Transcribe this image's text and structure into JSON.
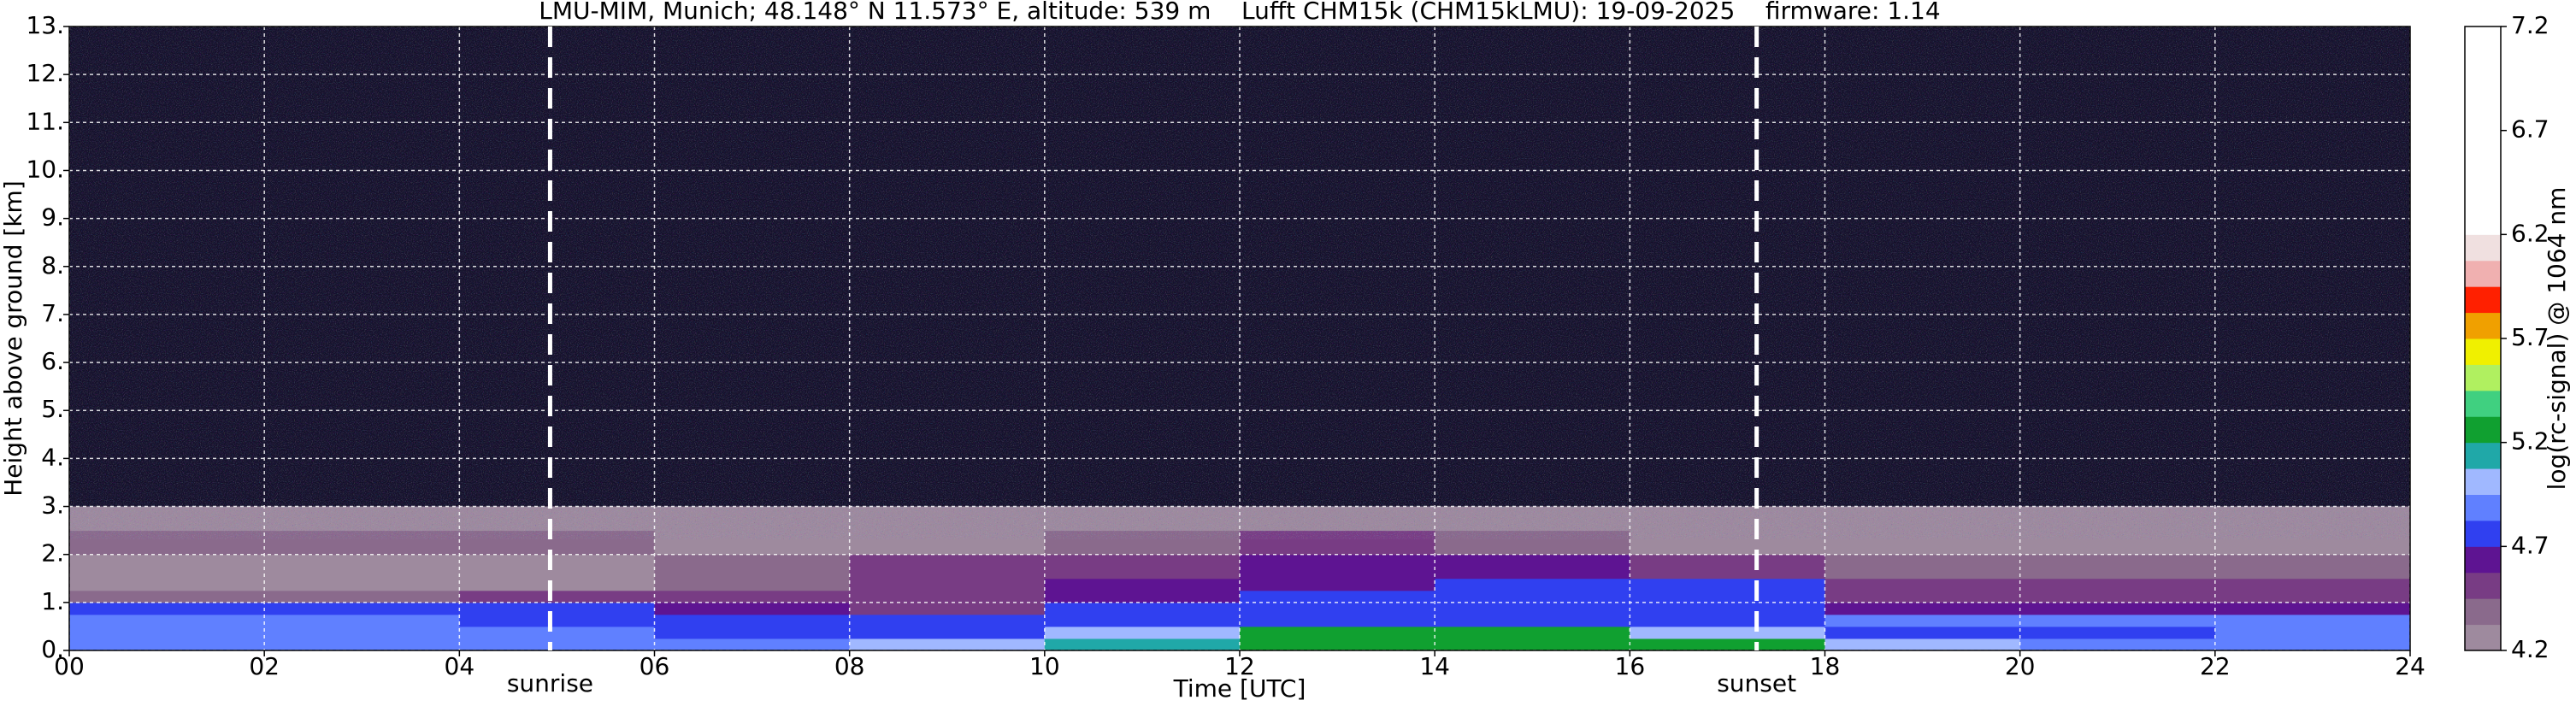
{
  "chart_data": {
    "type": "heatmap",
    "title": "LMU-MIM, Munich; 48.148° N 11.573° E, altitude: 539 m    Lufft CHM15k (CHM15kLMU): 19-09-2025    firmware: 1.14",
    "x_label": "Time [UTC]",
    "y_label": "Height above ground [km]",
    "colorbar_label": "log(rc-signal) @ 1064 nm",
    "xlim": [
      0,
      24
    ],
    "xticks": [
      {
        "value": 0,
        "label": "00"
      },
      {
        "value": 2,
        "label": "02"
      },
      {
        "value": 4,
        "label": "04"
      },
      {
        "value": 6,
        "label": "06"
      },
      {
        "value": 8,
        "label": "08"
      },
      10,
      12,
      14,
      16,
      18,
      20,
      22,
      24
    ],
    "ylim": [
      0,
      13
    ],
    "yticks": [
      {
        "value": 0,
        "label": "0."
      },
      {
        "value": 1,
        "label": "1."
      },
      {
        "value": 2,
        "label": "2."
      },
      {
        "value": 3,
        "label": "3."
      },
      {
        "value": 4,
        "label": "4."
      },
      {
        "value": 5,
        "label": "5."
      },
      {
        "value": 6,
        "label": "6."
      },
      {
        "value": 7,
        "label": "7."
      },
      {
        "value": 8,
        "label": "8."
      },
      {
        "value": 9,
        "label": "9."
      },
      {
        "value": 10,
        "label": "10."
      },
      {
        "value": 11,
        "label": "11."
      },
      {
        "value": 12,
        "label": "12."
      },
      {
        "value": 13,
        "label": "13."
      }
    ],
    "clim": [
      4.2,
      7.2
    ],
    "cticks": [
      4.2,
      4.7,
      5.2,
      5.7,
      6.2,
      6.7,
      7.2
    ],
    "colormap": [
      "#9e8a9e",
      "#8a6a8c",
      "#783c84",
      "#5e1492",
      "#3040f0",
      "#6080ff",
      "#a0b8ff",
      "#20a8a8",
      "#10a030",
      "#40d080",
      "#b0f060",
      "#f0f000",
      "#f0a000",
      "#ff2000",
      "#f0b0b0",
      "#f0e0e0",
      "#ffffff",
      "#ffffff",
      "#ffffff",
      "#ffffff",
      "#ffffff",
      "#ffffff",
      "#ffffff",
      "#ffffff"
    ],
    "grid": true,
    "x_edges": [
      0,
      2,
      4,
      6,
      8,
      10,
      12,
      14,
      16,
      18,
      20,
      22,
      24
    ],
    "y_edges": [
      0,
      0.25,
      0.5,
      0.75,
      1.0,
      1.25,
      1.5,
      2.0,
      2.5,
      3.0
    ],
    "values": [
      [
        4.9,
        4.9,
        4.85,
        4.85,
        4.95,
        5.15,
        5.25,
        5.3,
        5.2,
        4.95,
        4.9,
        4.9
      ],
      [
        4.85,
        4.85,
        4.85,
        4.8,
        4.8,
        5.0,
        5.2,
        5.2,
        5.0,
        4.8,
        4.8,
        4.85
      ],
      [
        4.85,
        4.85,
        4.8,
        4.75,
        4.72,
        4.75,
        4.8,
        4.8,
        4.78,
        4.85,
        4.85,
        4.85
      ],
      [
        4.8,
        4.8,
        4.72,
        4.6,
        4.55,
        4.72,
        4.75,
        4.75,
        4.75,
        4.65,
        4.6,
        4.65
      ],
      [
        4.4,
        4.4,
        4.45,
        4.5,
        4.55,
        4.6,
        4.7,
        4.7,
        4.72,
        4.55,
        4.5,
        4.5
      ],
      [
        4.3,
        4.3,
        4.3,
        4.4,
        4.5,
        4.6,
        4.68,
        4.7,
        4.7,
        4.5,
        4.45,
        4.45
      ],
      [
        4.3,
        4.3,
        4.3,
        4.35,
        4.45,
        4.55,
        4.62,
        4.6,
        4.5,
        4.4,
        4.4,
        4.4
      ],
      [
        4.4,
        4.4,
        4.38,
        4.3,
        4.3,
        4.4,
        4.45,
        4.35,
        4.3,
        4.3,
        4.3,
        4.3
      ],
      [
        4.3,
        4.3,
        4.25,
        4.25,
        4.25,
        4.25,
        4.25,
        4.25,
        4.25,
        4.22,
        4.22,
        4.22
      ]
    ],
    "annotations": [
      {
        "x": 4.93,
        "label": "sunrise"
      },
      {
        "x": 17.3,
        "label": "sunset"
      }
    ]
  }
}
